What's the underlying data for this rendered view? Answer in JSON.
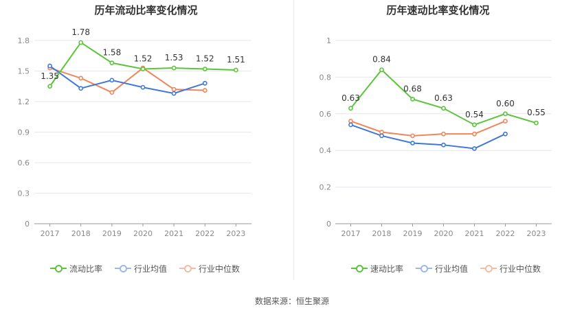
{
  "chart_data": [
    {
      "type": "line",
      "title": "历年流动比率变化情况",
      "categories": [
        "2017",
        "2018",
        "2019",
        "2020",
        "2021",
        "2022",
        "2023"
      ],
      "ylim": [
        0,
        1.8
      ],
      "yticks": [
        "0",
        "0.3",
        "0.6",
        "0.9",
        "1.2",
        "1.5",
        "1.8"
      ],
      "series": [
        {
          "name": "流动比率",
          "color": "#5ac53a",
          "values": [
            1.35,
            1.78,
            1.58,
            1.52,
            1.53,
            1.52,
            1.51
          ],
          "labels": [
            "1.35",
            "1.78",
            "1.58",
            "1.52",
            "1.53",
            "1.52",
            "1.51"
          ]
        },
        {
          "name": "行业均值",
          "color": "#3f77d8",
          "values": [
            1.55,
            1.33,
            1.41,
            1.34,
            1.28,
            1.38,
            null
          ]
        },
        {
          "name": "行业中位数",
          "color": "#f0855a",
          "values": [
            1.53,
            1.43,
            1.29,
            1.53,
            1.32,
            1.31,
            null
          ]
        }
      ],
      "grid": true,
      "legend": "bottom"
    },
    {
      "type": "line",
      "title": "历年速动比率变化情况",
      "categories": [
        "2017",
        "2018",
        "2019",
        "2020",
        "2021",
        "2022",
        "2023"
      ],
      "ylim": [
        0,
        1
      ],
      "yticks": [
        "0",
        "0.2",
        "0.4",
        "0.6",
        "0.8",
        "1"
      ],
      "series": [
        {
          "name": "速动比率",
          "color": "#5ac53a",
          "values": [
            0.63,
            0.84,
            0.68,
            0.63,
            0.54,
            0.6,
            0.55
          ],
          "labels": [
            "0.63",
            "0.84",
            "0.68",
            "0.63",
            "0.54",
            "0.60",
            "0.55"
          ]
        },
        {
          "name": "行业均值",
          "color": "#3f77d8",
          "values": [
            0.54,
            0.48,
            0.44,
            0.43,
            0.41,
            0.49,
            null
          ]
        },
        {
          "name": "行业中位数",
          "color": "#f0855a",
          "values": [
            0.56,
            0.5,
            0.48,
            0.49,
            0.49,
            0.56,
            null
          ]
        }
      ],
      "grid": true,
      "legend": "bottom"
    }
  ],
  "legend_icon_colors": [
    "#5ac53a",
    "#9bb8ea",
    "#f6bba2"
  ],
  "footer": {
    "source": "数据来源：恒生聚源"
  }
}
